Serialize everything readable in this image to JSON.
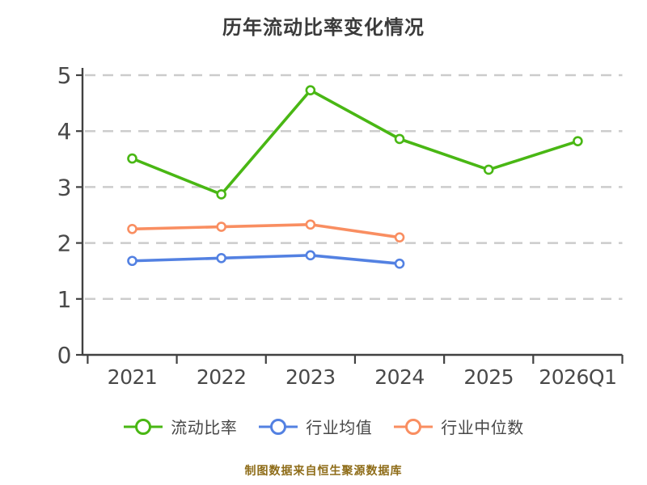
{
  "title": "历年流动比率变化情况",
  "footer": "制图数据来自恒生聚源数据库",
  "colors": {
    "background": "#ffffff",
    "title_text": "#3b3b3b",
    "axis": "#414141",
    "tick_label": "#494949",
    "gridline": "#cccccc",
    "legend_text": "#474747",
    "footer_text": "#8e6c18",
    "marker_fill": "#ffffff"
  },
  "chart_data": {
    "type": "line",
    "title": "历年流动比率变化情况",
    "xlabel": "",
    "ylabel": "",
    "categories": [
      "2021",
      "2022",
      "2023",
      "2024",
      "2025",
      "2026Q1"
    ],
    "series": [
      {
        "name": "流动比率",
        "color": "#49b714",
        "values": [
          3.51,
          2.87,
          4.73,
          3.86,
          3.31,
          3.82
        ]
      },
      {
        "name": "行业均值",
        "color": "#5381e2",
        "values": [
          1.68,
          1.73,
          1.78,
          1.63,
          null,
          null
        ]
      },
      {
        "name": "行业中位数",
        "color": "#f98e61",
        "values": [
          2.25,
          2.29,
          2.33,
          2.1,
          null,
          null
        ]
      }
    ],
    "ylim": [
      0,
      5
    ],
    "yticks": [
      0,
      1,
      2,
      3,
      4,
      5
    ],
    "grid": "horizontal-dashed",
    "legend_position": "bottom",
    "marker": "open-circle",
    "source_note": "制图数据来自恒生聚源数据库"
  }
}
